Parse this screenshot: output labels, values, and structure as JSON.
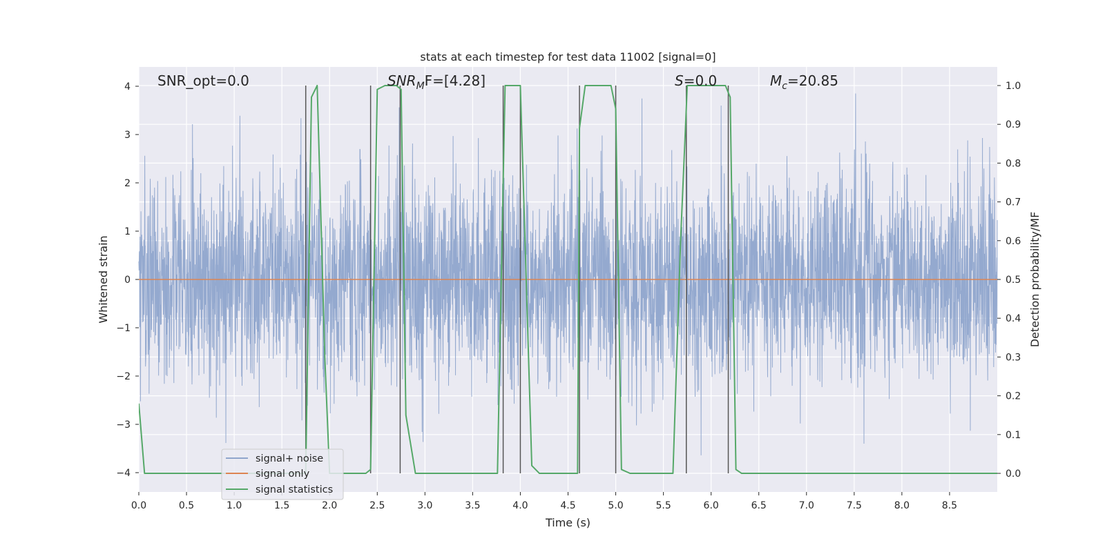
{
  "chart_data": {
    "type": "line",
    "title": "stats at each timestep for test data 11002 [signal=0]",
    "xlabel": "Time (s)",
    "ylabel": "Whitened strain",
    "y2label": "Detection probability/MF",
    "xlim": [
      0,
      9.0
    ],
    "ylim": [
      -4.4,
      4.4
    ],
    "y2lim": [
      -0.048,
      1.048
    ],
    "xticks": [
      0.0,
      0.5,
      1.0,
      1.5,
      2.0,
      2.5,
      3.0,
      3.5,
      4.0,
      4.5,
      5.0,
      5.5,
      6.0,
      6.5,
      7.0,
      7.5,
      8.0,
      8.5
    ],
    "xtick_labels": [
      "0.0",
      "0.5",
      "1.0",
      "1.5",
      "2.0",
      "2.5",
      "3.0",
      "3.5",
      "4.0",
      "4.5",
      "5.0",
      "5.5",
      "6.0",
      "6.5",
      "7.0",
      "7.5",
      "8.0",
      "8.5"
    ],
    "yticks": [
      -4,
      -3,
      -2,
      -1,
      0,
      1,
      2,
      3,
      4
    ],
    "ytick_labels": [
      "−4",
      "−3",
      "−2",
      "−1",
      "0",
      "1",
      "2",
      "3",
      "4"
    ],
    "y2ticks": [
      0.0,
      0.1,
      0.2,
      0.3,
      0.4,
      0.5,
      0.6,
      0.7,
      0.8,
      0.9,
      1.0
    ],
    "y2tick_labels": [
      "0.0",
      "0.1",
      "0.2",
      "0.3",
      "0.4",
      "0.5",
      "0.6",
      "0.7",
      "0.8",
      "0.9",
      "1.0"
    ],
    "grid": true,
    "legend_position": "bottom-left",
    "annotations": {
      "snr_opt": "SNR_opt=0.0",
      "snr_mf_base": "SNR",
      "snr_mf_sub": "M",
      "snr_mf_rest": "F=[4.28]",
      "s_base": "S",
      "s_rest": "=0.0",
      "mc_base": "M",
      "mc_sub": "c",
      "mc_rest": "=20.85"
    },
    "series": [
      {
        "name": "signal+ noise",
        "color": "#8fa5cc",
        "style": "noise",
        "sample_rate": 400,
        "duration": 9.0,
        "typical_peak_amplitude": 2.2,
        "max_amplitude": 3.85
      },
      {
        "name": "signal only",
        "color": "#dd8452",
        "x": [
          0.0,
          9.0
        ],
        "y": [
          0.0,
          0.0
        ]
      },
      {
        "name": "signal statistics",
        "color": "#55a868",
        "axis": "right",
        "x": [
          0.0,
          0.06,
          0.12,
          1.75,
          1.81,
          1.87,
          1.95,
          2.0,
          2.38,
          2.43,
          2.5,
          2.58,
          2.7,
          2.75,
          2.8,
          2.9,
          3.76,
          3.84,
          3.9,
          4.0,
          4.12,
          4.2,
          4.6,
          4.62,
          4.68,
          4.75,
          4.95,
          5.0,
          5.06,
          5.15,
          5.6,
          5.68,
          5.75,
          5.82,
          6.15,
          6.2,
          6.26,
          6.32,
          9.0
        ],
        "y": [
          0.18,
          0.0,
          0.0,
          0.0,
          0.97,
          1.0,
          0.3,
          0.0,
          0.0,
          0.01,
          0.99,
          1.0,
          1.0,
          0.99,
          0.15,
          0.0,
          0.0,
          1.0,
          1.0,
          1.0,
          0.02,
          0.0,
          0.0,
          0.89,
          1.0,
          1.0,
          1.0,
          0.94,
          0.01,
          0.0,
          0.0,
          0.6,
          1.0,
          1.0,
          1.0,
          0.97,
          0.01,
          0.0,
          0.0
        ]
      }
    ],
    "vertical_markers": {
      "color": "#555555",
      "x": [
        1.75,
        2.43,
        2.74,
        3.82,
        4.0,
        4.62,
        5.0,
        5.74,
        6.18
      ],
      "y_from": 0.0,
      "y_to": 1.0
    }
  }
}
